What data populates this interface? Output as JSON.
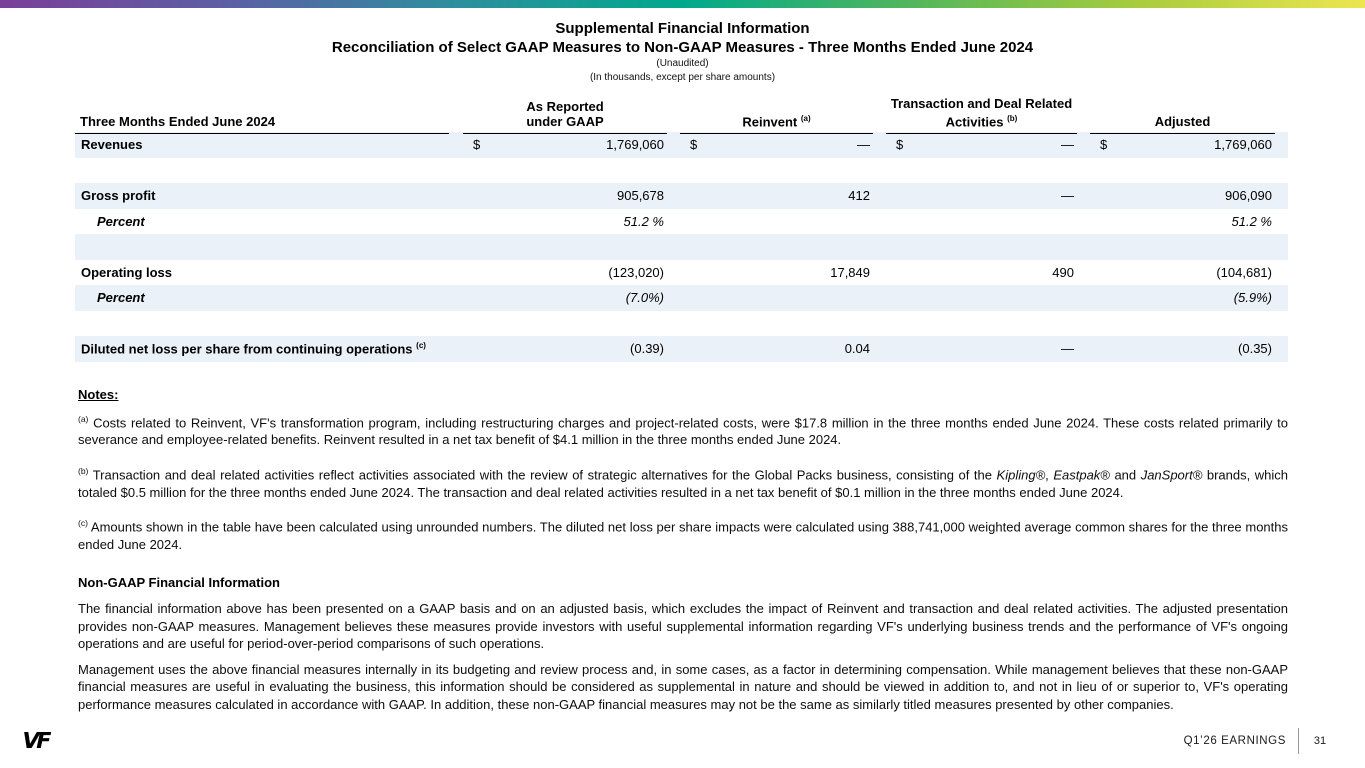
{
  "colors": {
    "row_shade": "#eaf1f8",
    "gradient": [
      "#7b3f98",
      "#5c5fa5",
      "#2e8f9e",
      "#00a98c",
      "#52b65c",
      "#a8cc3d",
      "#ece64f"
    ]
  },
  "header": {
    "title": "Supplemental Financial Information",
    "subtitle": "Reconciliation of Select GAAP Measures to Non-GAAP Measures - Three Months Ended June 2024",
    "unaudited": "(Unaudited)",
    "units": "(In thousands, except per share amounts)"
  },
  "table": {
    "header": {
      "label": "Three Months Ended June 2024",
      "cols": [
        {
          "lines": [
            "As Reported",
            "under GAAP"
          ],
          "sup": ""
        },
        {
          "lines": [
            "Reinvent"
          ],
          "sup": "(a)"
        },
        {
          "lines": [
            "Transaction and Deal Related",
            "Activities"
          ],
          "sup": "(b)"
        },
        {
          "lines": [
            "Adjusted"
          ],
          "sup": ""
        }
      ]
    },
    "rows": [
      {
        "type": "data",
        "shade": true,
        "dollar": true,
        "italic": false,
        "indent": false,
        "label": "Revenues",
        "sup": "",
        "values": [
          "1,769,060",
          "—",
          "—",
          "1,769,060"
        ]
      },
      {
        "type": "spacer",
        "shade": false
      },
      {
        "type": "data",
        "shade": true,
        "dollar": false,
        "italic": false,
        "indent": false,
        "label": "Gross profit",
        "sup": "",
        "values": [
          "905,678",
          "412",
          "—",
          "906,090"
        ]
      },
      {
        "type": "data",
        "shade": false,
        "dollar": false,
        "italic": true,
        "indent": true,
        "label": "Percent",
        "sup": "",
        "values": [
          "51.2 %",
          "",
          "",
          "51.2 %"
        ]
      },
      {
        "type": "spacer",
        "shade": true
      },
      {
        "type": "data",
        "shade": false,
        "dollar": false,
        "italic": false,
        "indent": false,
        "label": "Operating loss",
        "sup": "",
        "values": [
          "(123,020)",
          "17,849",
          "490",
          "(104,681)"
        ]
      },
      {
        "type": "data",
        "shade": true,
        "dollar": false,
        "italic": true,
        "indent": true,
        "label": "Percent",
        "sup": "",
        "values": [
          "(7.0%)",
          "",
          "",
          "(5.9%)"
        ]
      },
      {
        "type": "spacer",
        "shade": false
      },
      {
        "type": "data",
        "shade": true,
        "dollar": false,
        "italic": false,
        "indent": false,
        "label": "Diluted net loss per share from continuing operations",
        "sup": "(c)",
        "values": [
          "(0.39)",
          "0.04",
          "—",
          "(0.35)"
        ]
      }
    ]
  },
  "notes": {
    "heading": "Notes:",
    "items": [
      {
        "sup": "(a)",
        "segments": [
          {
            "t": "Costs related to Reinvent, VF's transformation program, including restructuring charges and project-related costs, were $17.8 million in the three months ended June 2024. These costs related primarily to severance and employee-related benefits. Reinvent resulted in a net tax benefit of $4.1 million in the three months ended June 2024.",
            "i": false
          }
        ]
      },
      {
        "sup": "(b)",
        "segments": [
          {
            "t": "Transaction and deal related activities reflect activities associated with the review of strategic alternatives for the Global Packs business, consisting of the ",
            "i": false
          },
          {
            "t": "Kipling®",
            "i": true
          },
          {
            "t": ", ",
            "i": false
          },
          {
            "t": "Eastpak®",
            "i": true
          },
          {
            "t": " and ",
            "i": false
          },
          {
            "t": "JanSport®",
            "i": true
          },
          {
            "t": " brands, which totaled $0.5 million for the three months ended June 2024. The transaction and deal related activities resulted in a net tax benefit of $0.1 million in the three months ended June 2024.",
            "i": false
          }
        ]
      },
      {
        "sup": "(c)",
        "segments": [
          {
            "t": "Amounts shown in the table have been calculated using unrounded numbers. The diluted net loss per share impacts were calculated using 388,741,000 weighted average common shares for the three months ended June 2024.",
            "i": false
          }
        ]
      }
    ]
  },
  "non_gaap": {
    "heading": "Non-GAAP Financial Information",
    "paragraphs": [
      "The financial information above has been presented on a GAAP basis and on an adjusted basis, which excludes the impact of Reinvent and transaction and deal related activities. The adjusted presentation provides non-GAAP measures. Management believes these measures provide investors with useful supplemental information regarding VF's underlying business trends and the performance of VF's ongoing operations and are useful for period-over-period comparisons of such operations.",
      "Management uses the above financial measures internally in its budgeting and review process and, in some cases, as a factor in determining compensation. While management believes that these non-GAAP financial measures are useful in evaluating the business, this information should be considered as supplemental in nature and should be viewed in addition to, and not in lieu of or superior to, VF's operating performance measures calculated in accordance with GAAP. In addition, these non-GAAP financial measures may not be the same as similarly titled measures presented by other companies."
    ]
  },
  "footer": {
    "brand": "VF",
    "label": "Q1’26 EARNINGS",
    "page": "31"
  }
}
